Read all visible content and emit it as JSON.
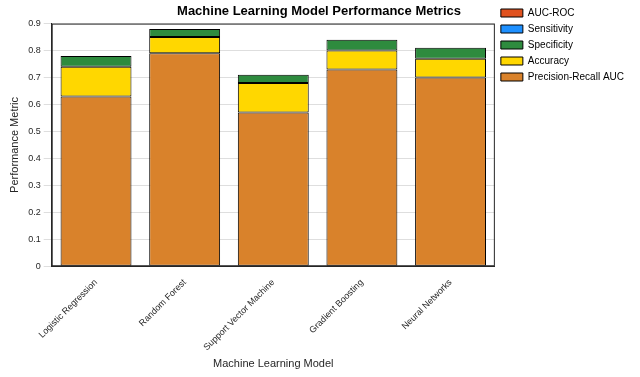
{
  "chart_data": {
    "type": "bar",
    "title": "Machine Learning Model Performance Metrics",
    "x_label": "Machine Learning Model",
    "y_label": "Performance Metric",
    "categories": [
      "Logistic Regression",
      "Random Forest",
      "Support Vector Machine",
      "Gradient Boosting",
      "Neural Networks"
    ],
    "series": [
      {
        "name": "Precision-Recall AUC",
        "color": "#d9822b",
        "values": [
          0.63,
          0.79,
          0.57,
          0.73,
          0.7
        ]
      },
      {
        "name": "Accuracy",
        "color": "#ffd700",
        "values": [
          0.11,
          0.06,
          0.11,
          0.07,
          0.07
        ]
      },
      {
        "name": "Specificity",
        "color": "#2e8b3e",
        "values": [
          0.04,
          0.03,
          0.03,
          0.04,
          0.04
        ]
      },
      {
        "name": "Sensitivity",
        "color": "#1e90ff",
        "values": [
          0,
          0,
          0,
          0,
          0
        ]
      },
      {
        "name": "AUC-ROC",
        "color": "#e0521f",
        "values": [
          0,
          0,
          0,
          0,
          0
        ]
      }
    ],
    "stacked": true,
    "grid": true,
    "legend": "upper right",
    "ylim": [
      0,
      0.9
    ],
    "yticks": [
      0,
      0.1,
      0.2,
      0.3,
      0.4,
      0.5,
      0.6,
      0.7,
      0.8,
      0.9
    ]
  }
}
